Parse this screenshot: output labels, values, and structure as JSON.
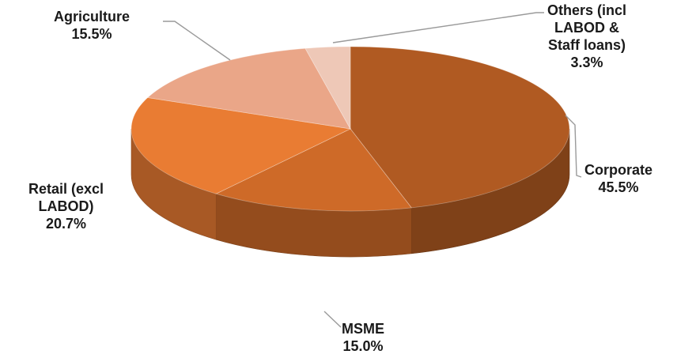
{
  "chart_data": {
    "type": "pie",
    "style": "3d",
    "start": "12 o'clock",
    "direction": "clockwise",
    "slices": [
      {
        "label_lines": [
          "Corporate"
        ],
        "value_text": "45.5%",
        "value": 45.5,
        "color": "#B05A22"
      },
      {
        "label_lines": [
          "MSME"
        ],
        "value_text": "15.0%",
        "value": 15.0,
        "color": "#CE6A28"
      },
      {
        "label_lines": [
          "Retail (excl",
          "LABOD)"
        ],
        "value_text": "20.7%",
        "value": 20.7,
        "color": "#E97C33"
      },
      {
        "label_lines": [
          "Agriculture"
        ],
        "value_text": "15.5%",
        "value": 15.5,
        "color": "#EAA688"
      },
      {
        "label_lines": [
          "Others (incl",
          "LABOD &",
          "Staff loans)"
        ],
        "value_text": "3.3%",
        "value": 3.3,
        "color": "#EEC8B7"
      }
    ],
    "legend": "none"
  }
}
